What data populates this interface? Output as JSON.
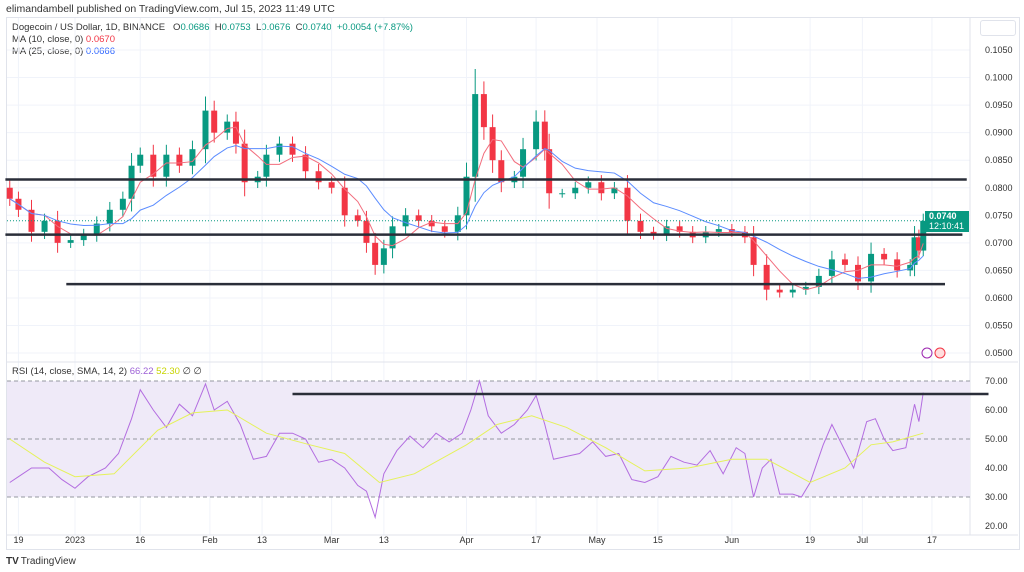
{
  "header": {
    "published": "elimandambell published on TradingView.com, Jul 15, 2023 11:49 UTC"
  },
  "legend": {
    "symbol": "Dogecoin / US Dollar, 1D, BINANCE",
    "o_label": "O",
    "o": "0.0686",
    "h_label": "H",
    "h": "0.0753",
    "l_label": "L",
    "l": "0.0676",
    "c_label": "C",
    "c": "0.0740",
    "change": "+0.0054 (+7.87%)",
    "ma10_label": "MA (10, close, 0)",
    "ma10": "0.0670",
    "ma25_label": "MA (25, close, 0)",
    "ma25": "0.0666",
    "rsi_label": "RSI (14, close, SMA, 14, 2)",
    "rsi": "66.22",
    "rsi_sma": "52.30",
    "rsi_extra": "∅ ∅"
  },
  "price_tag": {
    "price": "0.0740",
    "countdown": "12:10:41"
  },
  "footer": {
    "logo": "TradingView"
  },
  "colors": {
    "up": "#089981",
    "down": "#f23645",
    "ma10": "#f26d7d",
    "ma25": "#5b8cff",
    "rsi": "#b36de0",
    "rsi_sma": "#e5f25a",
    "rsi_band": "#efeaf8"
  },
  "chart_data": [
    {
      "type": "candlestick",
      "title": "Dogecoin / US Dollar, 1D, BINANCE",
      "ylim": [
        0.05,
        0.105
      ],
      "y_ticks": [
        "0.1050",
        "0.1000",
        "0.0950",
        "0.0900",
        "0.0850",
        "0.0800",
        "0.0750",
        "0.0700",
        "0.0650",
        "0.0600",
        "0.0550",
        "0.0500"
      ],
      "x_ticks": [
        [
          "2022-12-19",
          "19"
        ],
        [
          "2023-01-01",
          "2023"
        ],
        [
          "2023-01-16",
          "16"
        ],
        [
          "2023-02-01",
          "Feb"
        ],
        [
          "2023-02-13",
          "13"
        ],
        [
          "2023-03-01",
          "Mar"
        ],
        [
          "2023-03-13",
          "13"
        ],
        [
          "2023-04-01",
          "Apr"
        ],
        [
          "2023-04-17",
          "17"
        ],
        [
          "2023-05-01",
          "May"
        ],
        [
          "2023-05-15",
          "15"
        ],
        [
          "2023-06-01",
          "Jun"
        ],
        [
          "2023-06-19",
          "19"
        ],
        [
          "2023-07-01",
          "Jul"
        ],
        [
          "2023-07-17",
          "17"
        ]
      ],
      "closes": [
        [
          "2022-12-17",
          0.078
        ],
        [
          "2022-12-19",
          0.076
        ],
        [
          "2022-12-22",
          0.072
        ],
        [
          "2022-12-25",
          0.074
        ],
        [
          "2022-12-28",
          0.07
        ],
        [
          "2022-12-31",
          0.0705
        ],
        [
          "2023-01-03",
          0.0715
        ],
        [
          "2023-01-06",
          0.0735
        ],
        [
          "2023-01-09",
          0.076
        ],
        [
          "2023-01-12",
          0.078
        ],
        [
          "2023-01-14",
          0.084
        ],
        [
          "2023-01-16",
          0.086
        ],
        [
          "2023-01-19",
          0.082
        ],
        [
          "2023-01-22",
          0.086
        ],
        [
          "2023-01-25",
          0.084
        ],
        [
          "2023-01-28",
          0.087
        ],
        [
          "2023-01-31",
          0.094
        ],
        [
          "2023-02-02",
          0.09
        ],
        [
          "2023-02-05",
          0.092
        ],
        [
          "2023-02-07",
          0.088
        ],
        [
          "2023-02-09",
          0.081
        ],
        [
          "2023-02-12",
          0.082
        ],
        [
          "2023-02-14",
          0.086
        ],
        [
          "2023-02-17",
          0.088
        ],
        [
          "2023-02-20",
          0.086
        ],
        [
          "2023-02-23",
          0.083
        ],
        [
          "2023-02-26",
          0.081
        ],
        [
          "2023-03-01",
          0.08
        ],
        [
          "2023-03-04",
          0.075
        ],
        [
          "2023-03-07",
          0.074
        ],
        [
          "2023-03-09",
          0.07
        ],
        [
          "2023-03-11",
          0.066
        ],
        [
          "2023-03-13",
          0.069
        ],
        [
          "2023-03-15",
          0.073
        ],
        [
          "2023-03-18",
          0.075
        ],
        [
          "2023-03-21",
          0.074
        ],
        [
          "2023-03-24",
          0.073
        ],
        [
          "2023-03-27",
          0.072
        ],
        [
          "2023-03-30",
          0.075
        ],
        [
          "2023-04-01",
          0.082
        ],
        [
          "2023-04-03",
          0.097
        ],
        [
          "2023-04-05",
          0.091
        ],
        [
          "2023-04-07",
          0.085
        ],
        [
          "2023-04-09",
          0.081
        ],
        [
          "2023-04-12",
          0.082
        ],
        [
          "2023-04-14",
          0.087
        ],
        [
          "2023-04-17",
          0.092
        ],
        [
          "2023-04-19",
          0.087
        ],
        [
          "2023-04-20",
          0.079
        ],
        [
          "2023-04-23",
          0.079
        ],
        [
          "2023-04-26",
          0.08
        ],
        [
          "2023-04-29",
          0.081
        ],
        [
          "2023-05-02",
          0.079
        ],
        [
          "2023-05-05",
          0.08
        ],
        [
          "2023-05-08",
          0.074
        ],
        [
          "2023-05-11",
          0.072
        ],
        [
          "2023-05-14",
          0.0715
        ],
        [
          "2023-05-17",
          0.073
        ],
        [
          "2023-05-20",
          0.072
        ],
        [
          "2023-05-23",
          0.071
        ],
        [
          "2023-05-26",
          0.072
        ],
        [
          "2023-05-29",
          0.0725
        ],
        [
          "2023-06-01",
          0.072
        ],
        [
          "2023-06-04",
          0.071
        ],
        [
          "2023-06-06",
          0.066
        ],
        [
          "2023-06-09",
          0.0615
        ],
        [
          "2023-06-12",
          0.061
        ],
        [
          "2023-06-15",
          0.0615
        ],
        [
          "2023-06-18",
          0.062
        ],
        [
          "2023-06-21",
          0.064
        ],
        [
          "2023-06-24",
          0.067
        ],
        [
          "2023-06-27",
          0.066
        ],
        [
          "2023-06-30",
          0.063
        ],
        [
          "2023-07-03",
          0.068
        ],
        [
          "2023-07-06",
          0.067
        ],
        [
          "2023-07-09",
          0.065
        ],
        [
          "2023-07-12",
          0.066
        ],
        [
          "2023-07-13",
          0.071
        ],
        [
          "2023-07-14",
          0.0686
        ],
        [
          "2023-07-15",
          0.074
        ]
      ],
      "last_candle": {
        "open": 0.0686,
        "high": 0.0753,
        "low": 0.0676,
        "close": 0.074
      },
      "horizontal_lines": [
        {
          "price": 0.0815,
          "from": "2022-12-16",
          "to": "2023-07-25"
        },
        {
          "price": 0.0715,
          "from": "2022-12-16",
          "to": "2023-07-24"
        },
        {
          "price": 0.0625,
          "from": "2022-12-30",
          "to": "2023-07-20"
        }
      ],
      "current_price_line": 0.074
    },
    {
      "type": "line",
      "title": "RSI (14, close, SMA, 14, 2)",
      "ylim": [
        18,
        72
      ],
      "y_ticks": [
        "70.00",
        "60.00",
        "50.00",
        "40.00",
        "30.00",
        "20.00"
      ],
      "band": [
        30,
        70
      ],
      "midline": 50,
      "series": [
        {
          "name": "RSI",
          "points": [
            [
              "2022-12-17",
              35
            ],
            [
              "2022-12-19",
              37
            ],
            [
              "2022-12-22",
              40
            ],
            [
              "2022-12-26",
              40
            ],
            [
              "2022-12-29",
              36
            ],
            [
              "2023-01-01",
              33
            ],
            [
              "2023-01-04",
              37
            ],
            [
              "2023-01-08",
              40
            ],
            [
              "2023-01-11",
              45
            ],
            [
              "2023-01-14",
              57
            ],
            [
              "2023-01-16",
              67
            ],
            [
              "2023-01-19",
              60
            ],
            [
              "2023-01-22",
              54
            ],
            [
              "2023-01-25",
              62
            ],
            [
              "2023-01-28",
              58
            ],
            [
              "2023-01-31",
              69
            ],
            [
              "2023-02-02",
              60
            ],
            [
              "2023-02-05",
              63
            ],
            [
              "2023-02-08",
              55
            ],
            [
              "2023-02-11",
              43
            ],
            [
              "2023-02-14",
              44
            ],
            [
              "2023-02-17",
              52
            ],
            [
              "2023-02-20",
              52
            ],
            [
              "2023-02-23",
              50
            ],
            [
              "2023-02-26",
              42
            ],
            [
              "2023-03-01",
              43
            ],
            [
              "2023-03-04",
              40
            ],
            [
              "2023-03-07",
              34
            ],
            [
              "2023-03-09",
              32
            ],
            [
              "2023-03-11",
              23
            ],
            [
              "2023-03-13",
              38
            ],
            [
              "2023-03-16",
              46
            ],
            [
              "2023-03-19",
              51
            ],
            [
              "2023-03-22",
              47
            ],
            [
              "2023-03-25",
              52
            ],
            [
              "2023-03-28",
              49
            ],
            [
              "2023-03-31",
              52
            ],
            [
              "2023-04-02",
              60
            ],
            [
              "2023-04-04",
              70
            ],
            [
              "2023-04-06",
              58
            ],
            [
              "2023-04-09",
              52
            ],
            [
              "2023-04-12",
              55
            ],
            [
              "2023-04-15",
              60
            ],
            [
              "2023-04-17",
              65
            ],
            [
              "2023-04-19",
              55
            ],
            [
              "2023-04-21",
              43
            ],
            [
              "2023-04-24",
              44
            ],
            [
              "2023-04-27",
              45
            ],
            [
              "2023-04-30",
              49
            ],
            [
              "2023-05-03",
              44
            ],
            [
              "2023-05-06",
              45
            ],
            [
              "2023-05-09",
              36
            ],
            [
              "2023-05-12",
              35
            ],
            [
              "2023-05-15",
              37
            ],
            [
              "2023-05-18",
              44
            ],
            [
              "2023-05-21",
              42
            ],
            [
              "2023-05-24",
              41
            ],
            [
              "2023-05-27",
              46
            ],
            [
              "2023-05-30",
              38
            ],
            [
              "2023-06-02",
              47
            ],
            [
              "2023-06-04",
              45
            ],
            [
              "2023-06-06",
              30
            ],
            [
              "2023-06-08",
              40
            ],
            [
              "2023-06-10",
              43
            ],
            [
              "2023-06-12",
              31
            ],
            [
              "2023-06-15",
              31
            ],
            [
              "2023-06-17",
              30
            ],
            [
              "2023-06-19",
              35
            ],
            [
              "2023-06-22",
              48
            ],
            [
              "2023-06-24",
              55
            ],
            [
              "2023-06-27",
              46
            ],
            [
              "2023-06-29",
              40
            ],
            [
              "2023-07-02",
              56
            ],
            [
              "2023-07-04",
              57
            ],
            [
              "2023-07-06",
              50
            ],
            [
              "2023-07-08",
              46
            ],
            [
              "2023-07-11",
              47
            ],
            [
              "2023-07-13",
              62
            ],
            [
              "2023-07-14",
              56
            ],
            [
              "2023-07-15",
              66
            ]
          ]
        },
        {
          "name": "SMA",
          "points": [
            [
              "2022-12-17",
              50
            ],
            [
              "2022-12-25",
              42
            ],
            [
              "2023-01-01",
              37
            ],
            [
              "2023-01-10",
              38
            ],
            [
              "2023-01-20",
              53
            ],
            [
              "2023-01-28",
              59
            ],
            [
              "2023-02-05",
              60
            ],
            [
              "2023-02-14",
              52
            ],
            [
              "2023-02-24",
              48
            ],
            [
              "2023-03-04",
              45
            ],
            [
              "2023-03-12",
              35
            ],
            [
              "2023-03-20",
              38
            ],
            [
              "2023-04-01",
              48
            ],
            [
              "2023-04-08",
              55
            ],
            [
              "2023-04-16",
              58
            ],
            [
              "2023-04-24",
              54
            ],
            [
              "2023-05-03",
              47
            ],
            [
              "2023-05-12",
              39
            ],
            [
              "2023-05-22",
              40
            ],
            [
              "2023-06-01",
              43
            ],
            [
              "2023-06-09",
              43
            ],
            [
              "2023-06-19",
              35
            ],
            [
              "2023-06-27",
              40
            ],
            [
              "2023-07-03",
              48
            ],
            [
              "2023-07-08",
              49
            ],
            [
              "2023-07-15",
              52
            ]
          ]
        }
      ],
      "horizontal_lines": [
        {
          "value": 65.5,
          "from": "2023-02-20",
          "to": "2023-07-30"
        }
      ]
    }
  ]
}
